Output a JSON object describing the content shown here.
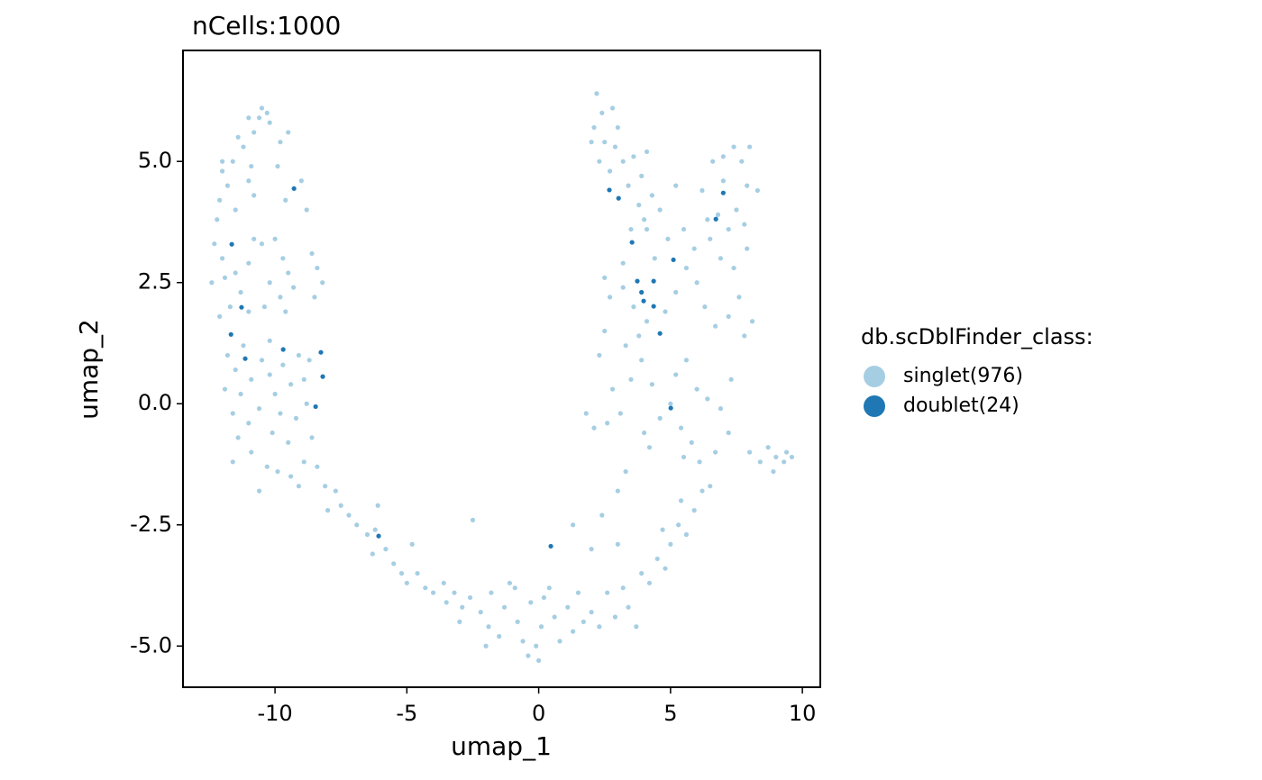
{
  "chart_data": {
    "type": "scatter",
    "title": "nCells:1000",
    "x_label": "umap_1",
    "y_label": "umap_2",
    "legend_title": "db.scDblFinder_class:",
    "legend_position": "right",
    "xlim": [
      -13.49,
      10.68
    ],
    "ylim": [
      -5.85,
      7.29
    ],
    "xticks": [
      -10,
      -5,
      0,
      5,
      10
    ],
    "yticks": [
      {
        "value": -5,
        "label": "-5.0"
      },
      -2.5,
      {
        "value": 0,
        "label": "0.0"
      },
      2.5,
      {
        "value": 5,
        "label": "5.0"
      }
    ],
    "series": [
      {
        "name": "singlet(976)",
        "color": "#a6cee3",
        "x": [
          -10.5,
          -10.3,
          -10.6,
          -10.2,
          -10.8,
          -11.2,
          -11.6,
          -12.0,
          -11.8,
          -12.1,
          -11.5,
          -12.2,
          -11.0,
          -9.8,
          -9.5,
          -9.0,
          -8.8,
          -9.9,
          -10.8,
          -11.4,
          -11.0,
          -9.6,
          -12.0,
          -10.9,
          -12.3,
          -12.0,
          -11.9,
          -12.4,
          -11.5,
          -11.0,
          -10.5,
          -10.0,
          -9.7,
          -9.5,
          -10.2,
          -9.8,
          -10.4,
          -9.6,
          -11.3,
          -11.7,
          -8.6,
          -8.4,
          -8.5,
          -8.2,
          -9.3,
          -10.8,
          -11.0,
          -12.1,
          -11.8,
          -11.5,
          -11.9,
          -11.3,
          -11.6,
          -11.0,
          -11.4,
          -10.9,
          -11.6,
          -10.5,
          -10.2,
          -10.0,
          -9.7,
          -9.4,
          -9.8,
          -9.2,
          -9.5,
          -10.1,
          -10.6,
          -10.3,
          -9.9,
          -9.4,
          -8.9,
          -8.6,
          -8.8,
          -8.9,
          -8.7,
          -9.1,
          -10.2,
          -10.9,
          -11.2,
          -10.6,
          -9.1,
          -8.4,
          -8.1,
          -7.7,
          -7.5,
          -8.0,
          -7.2,
          -6.9,
          -6.5,
          -6.2,
          -5.8,
          -6.3,
          -5.5,
          -5.2,
          -5.0,
          -4.6,
          -4.3,
          -4.0,
          -3.6,
          -3.5,
          -3.2,
          -4.8,
          -6.1,
          -2.9,
          -3.0,
          -2.6,
          -2.5,
          -2.2,
          -1.9,
          -1.8,
          -1.5,
          -1.3,
          -1.1,
          -0.8,
          -0.6,
          -0.3,
          -0.1,
          0.1,
          -0.4,
          0.2,
          0.4,
          0.6,
          0.8,
          1.1,
          1.3,
          1.5,
          1.7,
          0.0,
          -0.9,
          -2.0,
          2.0,
          2.3,
          2.6,
          2.9,
          3.2,
          3.4,
          3.7,
          3.9,
          4.2,
          4.5,
          4.8,
          5.0,
          5.3,
          5.6,
          5.9,
          6.2,
          6.5,
          5.4,
          4.7,
          3.0,
          2.4,
          1.3,
          2.0,
          3.3,
          3.0,
          2.8,
          3.1,
          2.6,
          3.5,
          3.9,
          4.3,
          4.6,
          5.0,
          5.4,
          5.8,
          6.1,
          5.5,
          4.2,
          4.0,
          3.8,
          3.3,
          2.5,
          2.3,
          5.2,
          5.6,
          6.0,
          6.4,
          6.9,
          7.3,
          7.2,
          6.7,
          1.8,
          2.1,
          2.7,
          3.2,
          3.6,
          4.1,
          4.8,
          5.2,
          5.6,
          6.0,
          6.3,
          6.7,
          7.2,
          7.6,
          7.8,
          7.4,
          6.9,
          6.5,
          5.9,
          5.5,
          4.9,
          4.4,
          4.0,
          3.5,
          3.2,
          2.5,
          7.9,
          8.1,
          2.2,
          2.4,
          2.1,
          2.5,
          2.9,
          2.3,
          2.7,
          3.2,
          3.6,
          3.9,
          4.1,
          3.4,
          3.8,
          4.3,
          4.6,
          5.2,
          4.1,
          2.0,
          2.8,
          3.0,
          6.2,
          6.6,
          7.0,
          7.4,
          7.7,
          7.9,
          8.3,
          7.5,
          7.2,
          6.8,
          7.8,
          7.0,
          6.4,
          8.0,
          8.0,
          8.4,
          8.7,
          9.0,
          9.3,
          9.6,
          8.9,
          9.4
        ],
        "y": [
          6.1,
          6.0,
          5.9,
          5.8,
          5.6,
          5.3,
          5.0,
          4.8,
          4.5,
          4.2,
          4.0,
          3.8,
          4.6,
          5.4,
          5.6,
          4.6,
          4.0,
          4.9,
          4.3,
          5.5,
          5.9,
          4.2,
          5.0,
          4.9,
          3.3,
          3.0,
          2.6,
          2.5,
          2.7,
          2.9,
          3.3,
          3.4,
          3.0,
          2.7,
          2.5,
          2.2,
          2.0,
          1.9,
          2.3,
          2.0,
          3.1,
          2.8,
          2.2,
          2.5,
          2.4,
          3.4,
          1.9,
          1.8,
          1.0,
          0.7,
          0.3,
          0.2,
          -0.2,
          -0.4,
          -0.7,
          -1.0,
          -1.2,
          0.9,
          0.6,
          0.2,
          0.8,
          0.4,
          -0.2,
          -0.3,
          -0.8,
          -0.6,
          -0.1,
          -1.3,
          -1.4,
          -1.5,
          -1.2,
          -0.7,
          0.0,
          0.5,
          0.9,
          1.0,
          1.3,
          0.5,
          1.2,
          -1.8,
          -1.7,
          -1.3,
          -1.7,
          -1.8,
          -2.1,
          -2.2,
          -2.3,
          -2.5,
          -2.7,
          -2.6,
          -3.0,
          -3.1,
          -3.3,
          -3.5,
          -3.7,
          -3.5,
          -3.8,
          -3.9,
          -3.7,
          -4.1,
          -3.9,
          -2.9,
          -2.1,
          -4.2,
          -4.5,
          -4.0,
          -2.4,
          -4.3,
          -4.6,
          -3.9,
          -4.8,
          -4.2,
          -3.7,
          -4.5,
          -4.9,
          -4.1,
          -5.0,
          -4.6,
          -5.2,
          -4.0,
          -3.8,
          -4.4,
          -4.9,
          -4.2,
          -4.7,
          -3.9,
          -4.5,
          -5.3,
          -3.8,
          -5.0,
          -4.3,
          -4.6,
          -3.9,
          -4.4,
          -3.8,
          -4.2,
          -4.6,
          -3.5,
          -3.7,
          -3.2,
          -3.4,
          -2.9,
          -2.5,
          -2.7,
          -2.2,
          -1.8,
          -1.7,
          -2.0,
          -2.6,
          -2.9,
          -2.3,
          -2.5,
          -3.0,
          -1.4,
          -1.8,
          0.3,
          -0.2,
          -0.4,
          0.5,
          0.9,
          0.4,
          -0.3,
          0.0,
          -0.5,
          -0.8,
          -1.2,
          -1.1,
          -0.9,
          -0.6,
          1.4,
          1.2,
          1.5,
          1.0,
          0.6,
          0.9,
          0.3,
          0.1,
          -0.1,
          0.5,
          -0.6,
          -1.0,
          -0.2,
          -0.5,
          2.2,
          2.4,
          2.0,
          1.7,
          1.9,
          2.3,
          2.8,
          2.5,
          2.0,
          1.6,
          1.8,
          2.2,
          1.4,
          2.8,
          3.0,
          3.4,
          3.2,
          3.6,
          3.4,
          3.0,
          3.8,
          3.6,
          2.9,
          2.6,
          3.2,
          1.7,
          6.4,
          6.0,
          5.7,
          5.4,
          5.3,
          5.0,
          4.8,
          5.0,
          5.1,
          4.7,
          5.2,
          4.5,
          4.1,
          4.3,
          4.0,
          4.5,
          3.6,
          5.4,
          6.1,
          5.7,
          4.4,
          5.0,
          5.1,
          5.3,
          5.0,
          4.5,
          4.4,
          4.0,
          3.6,
          3.9,
          3.7,
          4.6,
          3.8,
          5.3,
          -1.0,
          -1.2,
          -0.9,
          -1.1,
          -1.2,
          -1.1,
          -1.4,
          -1.0
        ]
      },
      {
        "name": "doublet(24)",
        "color": "#1f78b4",
        "x": [
          -9.28,
          -11.64,
          -11.27,
          -11.67,
          -11.13,
          -9.69,
          -8.26,
          -8.19,
          -8.46,
          -6.07,
          0.46,
          2.68,
          3.03,
          3.54,
          7.0,
          6.72,
          5.11,
          3.74,
          4.36,
          3.98,
          4.36,
          4.6,
          5.01,
          3.9
        ],
        "y": [
          4.44,
          3.29,
          1.99,
          1.43,
          0.93,
          1.12,
          1.06,
          0.56,
          -0.06,
          -2.73,
          -2.94,
          4.41,
          4.24,
          3.33,
          4.35,
          3.81,
          2.97,
          2.53,
          2.53,
          2.12,
          2.01,
          1.45,
          -0.09,
          2.3
        ]
      }
    ]
  }
}
